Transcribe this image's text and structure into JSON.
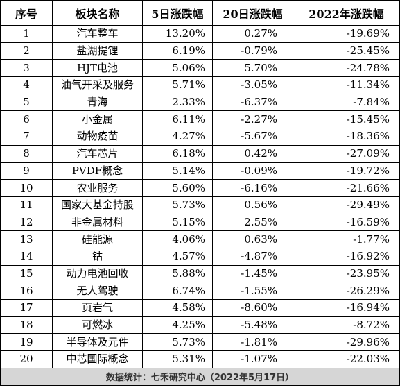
{
  "headers": [
    "序号",
    "板块名称",
    "5日涨跌幅",
    "20日涨跌幅",
    "2022年涨跌幅"
  ],
  "rows": [
    [
      "1",
      "汽车整车",
      "13.20%",
      "0.27%",
      "-19.69%"
    ],
    [
      "2",
      "盐湖提锂",
      "6.19%",
      "-0.79%",
      "-25.45%"
    ],
    [
      "3",
      "HJT电池",
      "5.06%",
      "5.70%",
      "-24.78%"
    ],
    [
      "4",
      "油气开采及服务",
      "5.71%",
      "-3.05%",
      "-11.34%"
    ],
    [
      "5",
      "青海",
      "2.33%",
      "-6.37%",
      "-7.84%"
    ],
    [
      "6",
      "小金属",
      "6.11%",
      "-2.27%",
      "-15.45%"
    ],
    [
      "7",
      "动物疫苗",
      "4.27%",
      "-5.67%",
      "-18.36%"
    ],
    [
      "8",
      "汽车芯片",
      "6.18%",
      "0.42%",
      "-27.09%"
    ],
    [
      "9",
      "PVDF概念",
      "5.14%",
      "-0.09%",
      "-19.72%"
    ],
    [
      "10",
      "农业服务",
      "5.60%",
      "-6.16%",
      "-21.66%"
    ],
    [
      "11",
      "国家大基金持股",
      "5.73%",
      "0.56%",
      "-29.49%"
    ],
    [
      "12",
      "非金属材料",
      "5.15%",
      "2.55%",
      "-16.59%"
    ],
    [
      "13",
      "硅能源",
      "4.06%",
      "0.63%",
      "-1.77%"
    ],
    [
      "14",
      "钴",
      "4.57%",
      "-4.87%",
      "-16.92%"
    ],
    [
      "15",
      "动力电池回收",
      "5.88%",
      "-1.45%",
      "-23.95%"
    ],
    [
      "16",
      "无人驾驶",
      "6.74%",
      "-1.55%",
      "-26.29%"
    ],
    [
      "17",
      "页岩气",
      "4.58%",
      "-8.60%",
      "-16.94%"
    ],
    [
      "18",
      "可燃冰",
      "4.25%",
      "-5.48%",
      "-8.72%"
    ],
    [
      "19",
      "半导体及元件",
      "5.73%",
      "-1.81%",
      "-29.96%"
    ],
    [
      "20",
      "中芯国际概念",
      "5.31%",
      "-1.07%",
      "-22.03%"
    ]
  ],
  "footer": "数据统计：七禾研究中心（2022年5月17日）"
}
